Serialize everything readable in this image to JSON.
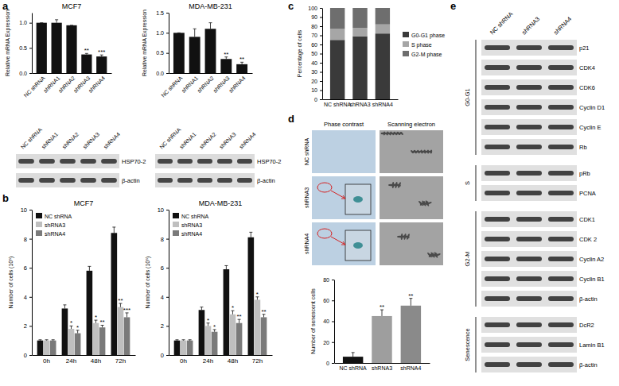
{
  "chart_data": [
    {
      "type": "bar",
      "title": "MCF7",
      "y_label": "Relative mRNA Expression",
      "categories": [
        "NC shRNA",
        "shRNA1",
        "shRNA2",
        "shRNA3",
        "shRNA4"
      ],
      "values": [
        1,
        1,
        0.95,
        0.37,
        0.33
      ],
      "errors": [
        0,
        0.06,
        0,
        0.02,
        0.03
      ],
      "annotations": [
        null,
        null,
        null,
        "**",
        "***"
      ],
      "color": "#111111",
      "ylim": [
        0,
        1.2
      ],
      "yticks": [
        {
          "value": 0,
          "label": "0.0"
        },
        0.5,
        {
          "value": 1,
          "label": "1.0"
        }
      ]
    },
    {
      "type": "bar",
      "title": "MDA-MB-231",
      "y_label": "Relative mRNA Expression",
      "categories": [
        "NC shRNA",
        "shRNA1",
        "shRNA2",
        "shRNA3",
        "shRNA4"
      ],
      "values": [
        1,
        0.9,
        1.1,
        0.35,
        0.22
      ],
      "errors": [
        0,
        0.2,
        0.15,
        0.05,
        0.05
      ],
      "annotations": [
        null,
        null,
        null,
        "**",
        "**"
      ],
      "color": "#111111",
      "ylim": [
        0,
        1.5
      ],
      "yticks": [
        {
          "value": 0,
          "label": "0.0"
        },
        0.5,
        {
          "value": 1,
          "label": "1.0"
        },
        1.5
      ]
    },
    {
      "type": "bar",
      "title": "MCF7",
      "y_label": "Number of cells (10⁵)",
      "categories": [
        "0h",
        "24h",
        "48h",
        "72h"
      ],
      "series": [
        {
          "name": "NC shRNA",
          "color": "#111111",
          "values": [
            1,
            3.2,
            5.8,
            8.4
          ],
          "errors": [
            0.05,
            0.25,
            0.3,
            0.4
          ]
        },
        {
          "name": "shRNA3",
          "color": "#bfbfbf",
          "values": [
            1,
            1.8,
            2.2,
            3.3
          ],
          "errors": [
            0.05,
            0.2,
            0.2,
            0.25
          ],
          "annotations": [
            null,
            "*",
            "*",
            "**"
          ]
        },
        {
          "name": "shRNA4",
          "color": "#7a7a7a",
          "values": [
            1,
            1.5,
            1.9,
            2.6
          ],
          "errors": [
            0.05,
            0.2,
            0.15,
            0.3
          ],
          "annotations": [
            null,
            "*",
            "**",
            "***"
          ]
        }
      ],
      "legend": "upper left",
      "ylim": [
        0,
        10
      ],
      "yticks": [
        0,
        2,
        4,
        6,
        8,
        10
      ]
    },
    {
      "type": "bar",
      "title": "MDA-MB-231",
      "y_label": "Number of cells (10⁵)",
      "categories": [
        "0h",
        "24h",
        "48h",
        "72h"
      ],
      "series": [
        {
          "name": "NC shRNA",
          "color": "#111111",
          "values": [
            1,
            3.1,
            5.9,
            8.1
          ],
          "errors": [
            0.05,
            0.2,
            0.25,
            0.35
          ]
        },
        {
          "name": "shRNA3",
          "color": "#bfbfbf",
          "values": [
            1,
            2.0,
            2.8,
            3.8
          ],
          "errors": [
            0.05,
            0.2,
            0.25,
            0.2
          ],
          "annotations": [
            null,
            "*",
            "*",
            "*"
          ]
        },
        {
          "name": "shRNA4",
          "color": "#7a7a7a",
          "values": [
            1,
            1.6,
            2.2,
            2.6
          ],
          "errors": [
            0.05,
            0.15,
            0.25,
            0.2
          ],
          "annotations": [
            null,
            "*",
            "**",
            "**"
          ]
        }
      ],
      "legend": "upper left",
      "ylim": [
        0,
        10
      ],
      "yticks": [
        0,
        2,
        4,
        6,
        8,
        10
      ]
    },
    {
      "type": "bar",
      "stacked": true,
      "y_label": "Percentage of cells",
      "categories": [
        "NC shRNA",
        "shRNA3",
        "shRNA4"
      ],
      "series": [
        {
          "name": "G0-G1 phase",
          "color": "#3a3a3a",
          "values": [
            65,
            69,
            72
          ]
        },
        {
          "name": "S phase",
          "color": "#a6a6a6",
          "values": [
            12,
            9,
            10
          ]
        },
        {
          "name": "G2-M phase",
          "color": "#6e6e6e",
          "values": [
            23,
            22,
            18
          ]
        }
      ],
      "legend": "right",
      "ylim": [
        0,
        100
      ],
      "yticks": [
        0,
        10,
        20,
        30,
        40,
        50,
        60,
        70,
        80,
        90,
        100
      ]
    },
    {
      "type": "bar",
      "y_label": "Number of senescent cells",
      "categories": [
        "NC shRNA",
        "shRNA3",
        "shRNA4"
      ],
      "values": [
        6,
        45,
        55
      ],
      "errors": [
        4,
        6,
        7
      ],
      "annotations": [
        null,
        "**",
        "**"
      ],
      "colors": [
        "#111111",
        "#9e9e9e",
        "#8a8a8a"
      ],
      "ylim": [
        0,
        80
      ],
      "yticks": [
        0,
        20,
        40,
        60,
        80
      ]
    }
  ],
  "panel_labels": [
    "a",
    "b",
    "c",
    "d",
    "e"
  ],
  "blots_a": [
    {
      "columns": [
        "NC shRNA",
        "shRNA1",
        "shRNA2",
        "shRNA3",
        "shRNA4"
      ],
      "rows": [
        "HSP70-2",
        "β-actin"
      ]
    },
    {
      "columns": [
        "NC shRNA",
        "shRNA1",
        "shRNA2",
        "shRNA3",
        "shRNA4"
      ],
      "rows": [
        "HSP70-2",
        "β-actin"
      ]
    }
  ],
  "images_d": {
    "columns": [
      "Phase contrast",
      "Scanning electron"
    ],
    "rows": [
      "NC shRNA",
      "shRNA3",
      "shRNA4"
    ]
  },
  "blot_e": {
    "columns": [
      "NC shRNA",
      "shRNA3",
      "shRNA4"
    ],
    "groups": [
      {
        "name": "G0-G1",
        "rows": [
          "p21",
          "CDK4",
          "CDK6",
          "Cyclin D1",
          "Cyclin E",
          "Rb"
        ]
      },
      {
        "name": "S",
        "rows": [
          "pRb",
          "PCNA"
        ]
      },
      {
        "name": "G2-M",
        "rows": [
          "CDK1",
          "CDK 2",
          "Cyclin A2",
          "Cyclin B1",
          "β-actin"
        ]
      },
      {
        "name": "Senescence",
        "rows": [
          "DcR2",
          "Lamin B1",
          "β-actin"
        ]
      }
    ]
  }
}
